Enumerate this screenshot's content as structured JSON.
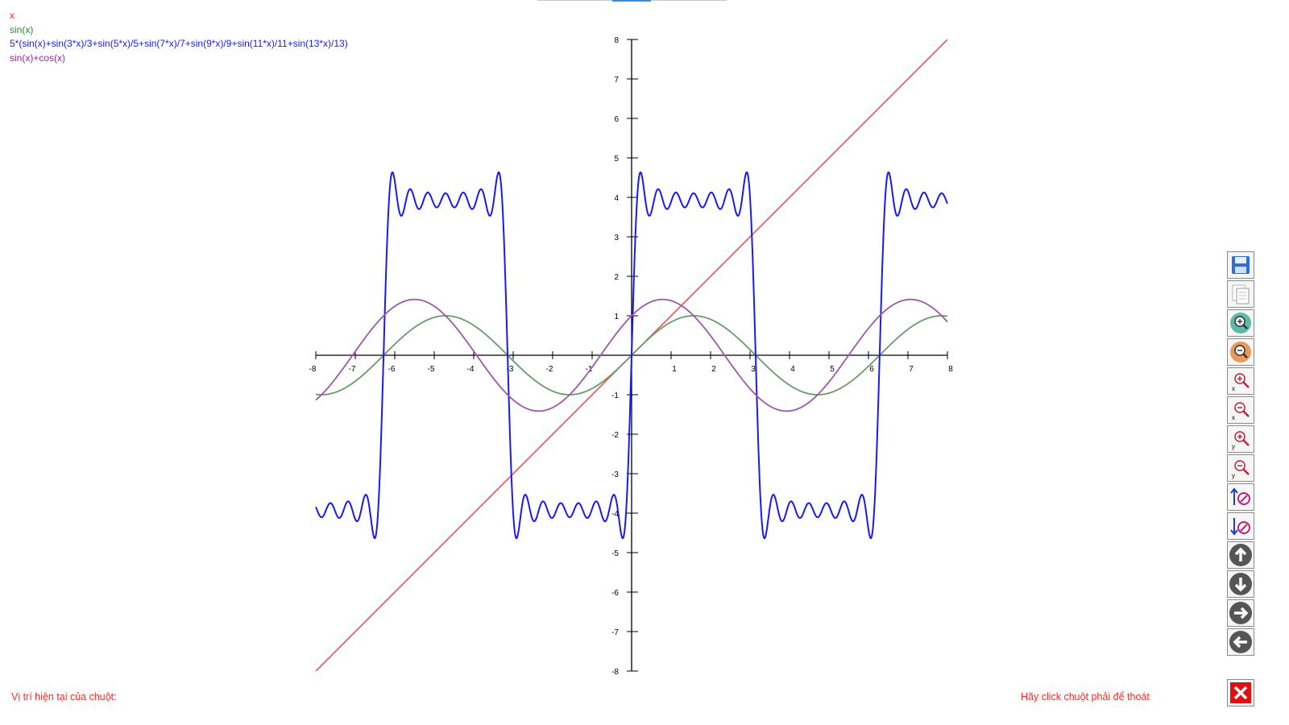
{
  "legend": [
    {
      "label": "x",
      "color": "#ff2a2a"
    },
    {
      "label": "sin(x)",
      "color": "#2a8a2a"
    },
    {
      "label": "5*(sin(x)+sin(3*x)/3+sin(5*x)/5+sin(7*x)/7+sin(9*x)/9+sin(11*x)/11+sin(13*x)/13)",
      "color": "#1a1aff"
    },
    {
      "label": "sin(x)+cos(x)",
      "color": "#a020a0"
    }
  ],
  "status": {
    "mouse_position_label": "Vị trí hiện tại của chuột:",
    "exit_hint": "Hãy click chuột phải để thoát"
  },
  "chart_data": {
    "type": "line",
    "xlim": [
      -8,
      8
    ],
    "ylim": [
      -8,
      8
    ],
    "x_ticks": [
      -8,
      -7,
      -6,
      -5,
      -4,
      -3,
      -2,
      -1,
      1,
      2,
      3,
      4,
      5,
      6,
      7,
      8
    ],
    "y_ticks": [
      8,
      7,
      6,
      5,
      4,
      3,
      2,
      1,
      -1,
      -2,
      -3,
      -4,
      -5,
      -6,
      -7,
      -8
    ],
    "grid": false,
    "series": [
      {
        "name": "x",
        "color": "#ff5a5a",
        "expr": "x"
      },
      {
        "name": "sin(x)",
        "color": "#6a9a6a",
        "expr": "sin"
      },
      {
        "name": "5*(sin(x)+sin(3*x)/3+sin(5*x)/5+sin(7*x)/7+sin(9*x)/9+sin(11*x)/11+sin(13*x)/13)",
        "color": "#1a1aee",
        "expr": "fourier"
      },
      {
        "name": "sin(x)+cos(x)",
        "color": "#9a5aa6",
        "expr": "sincos"
      }
    ]
  },
  "toolbar": [
    {
      "name": "save-button",
      "icon": "floppy-icon"
    },
    {
      "name": "copy-button",
      "icon": "copy-icon"
    },
    {
      "name": "zoom-in-button",
      "icon": "zoom-in-icon"
    },
    {
      "name": "zoom-out-button",
      "icon": "zoom-out-icon"
    },
    {
      "name": "zoom-in-x-button",
      "icon": "zoom-in-x-icon"
    },
    {
      "name": "zoom-out-x-button",
      "icon": "zoom-out-x-icon"
    },
    {
      "name": "zoom-in-y-button",
      "icon": "zoom-in-y-icon"
    },
    {
      "name": "zoom-out-y-button",
      "icon": "zoom-out-y-icon"
    },
    {
      "name": "increase-resolution-button",
      "icon": "arrow-up-gauge-icon"
    },
    {
      "name": "decrease-resolution-button",
      "icon": "arrow-down-gauge-icon"
    },
    {
      "name": "pan-up-button",
      "icon": "arrow-up-circle-icon"
    },
    {
      "name": "pan-down-button",
      "icon": "arrow-down-circle-icon"
    },
    {
      "name": "pan-right-button",
      "icon": "arrow-right-circle-icon"
    },
    {
      "name": "pan-left-button",
      "icon": "arrow-left-circle-icon"
    }
  ]
}
